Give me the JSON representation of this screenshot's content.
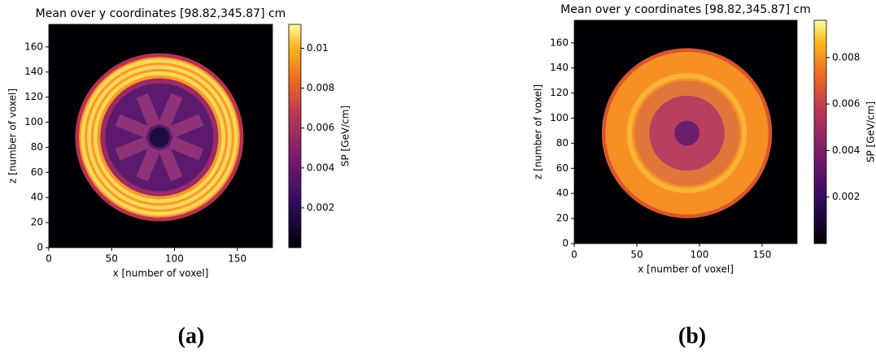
{
  "chart_data": [
    {
      "type": "heatmap",
      "title": "Mean over y coordinates [98.82,345.87] cm",
      "x_label": "x [number of voxel]",
      "y_label": "z [number of voxel]",
      "xlim": [
        0,
        178
      ],
      "ylim": [
        0,
        178
      ],
      "xticks": [
        0,
        50,
        100,
        150
      ],
      "yticks": [
        0,
        20,
        40,
        60,
        80,
        100,
        120,
        140,
        160
      ],
      "colorbar": {
        "label": "SP [GeV/cm]",
        "lim": [
          0,
          0.0112
        ],
        "ticks": [
          0.002,
          0.004,
          0.006,
          0.008,
          0.01
        ]
      },
      "caption": "(a)"
    },
    {
      "type": "heatmap",
      "title": "Mean over y coordinates [98.82,345.87] cm",
      "x_label": "x [number of voxel]",
      "y_label": "z [number of voxel]",
      "xlim": [
        0,
        178
      ],
      "ylim": [
        0,
        178
      ],
      "xticks": [
        0,
        50,
        100,
        150
      ],
      "yticks": [
        0,
        20,
        40,
        60,
        80,
        100,
        120,
        140,
        160
      ],
      "colorbar": {
        "label": "SP [GeV/cm]",
        "lim": [
          0,
          0.0096
        ],
        "ticks": [
          0.002,
          0.004,
          0.006,
          0.008
        ]
      },
      "caption": "(b)"
    }
  ]
}
